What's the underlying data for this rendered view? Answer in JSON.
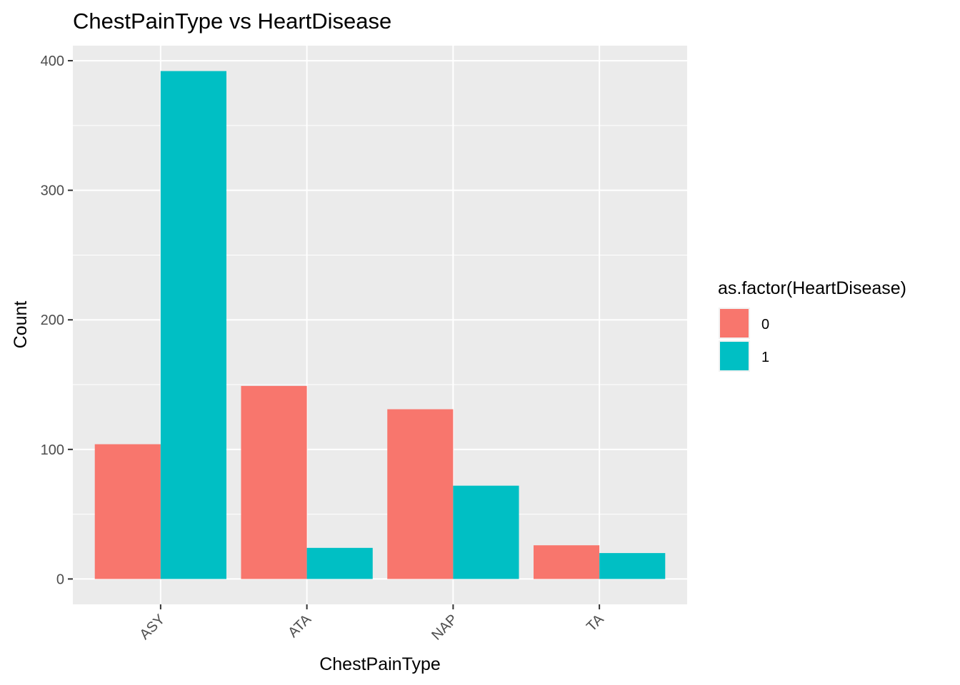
{
  "chart_data": {
    "type": "bar",
    "title": "ChestPainType vs HeartDisease",
    "xlabel": "ChestPainType",
    "ylabel": "Count",
    "categories": [
      "ASY",
      "ATA",
      "NAP",
      "TA"
    ],
    "series": [
      {
        "name": "0",
        "values": [
          104,
          149,
          131,
          26
        ],
        "color": "#F8766D"
      },
      {
        "name": "1",
        "values": [
          392,
          24,
          72,
          20
        ],
        "color": "#00BFC4"
      }
    ],
    "ylim": [
      -19.6,
      411.6
    ],
    "yticks": [
      0,
      100,
      200,
      300,
      400
    ],
    "grid": true,
    "legend": {
      "title": "as.factor(HeartDisease)",
      "placement": "right"
    },
    "colors": {
      "panel_background": "#EBEBEB",
      "grid_line": "#FFFFFF",
      "tick_label": "#4D4D4D"
    }
  }
}
